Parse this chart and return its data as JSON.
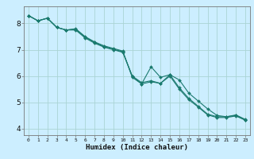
{
  "xlabel": "Humidex (Indice chaleur)",
  "xlim": [
    -0.5,
    23.5
  ],
  "ylim": [
    3.75,
    8.65
  ],
  "background_color": "#cceeff",
  "grid_color": "#aad4d4",
  "line_color": "#1a7a6e",
  "x": [
    0,
    1,
    2,
    3,
    4,
    5,
    6,
    7,
    8,
    9,
    10,
    11,
    12,
    13,
    14,
    15,
    16,
    17,
    18,
    19,
    20,
    21,
    22,
    23
  ],
  "line1": [
    8.3,
    8.1,
    8.2,
    7.85,
    7.75,
    7.8,
    7.5,
    7.3,
    7.15,
    7.05,
    6.95,
    5.95,
    5.7,
    6.35,
    5.95,
    6.05,
    5.85,
    5.35,
    5.05,
    4.75,
    4.5,
    4.45,
    4.5,
    4.32
  ],
  "line2": [
    8.3,
    8.1,
    8.2,
    7.85,
    7.75,
    7.75,
    7.45,
    7.25,
    7.1,
    7.0,
    6.9,
    6.0,
    5.7,
    5.78,
    5.72,
    6.0,
    5.5,
    5.1,
    4.82,
    4.52,
    4.42,
    4.42,
    4.48,
    4.32
  ],
  "line3": [
    8.3,
    8.1,
    8.2,
    7.85,
    7.75,
    7.78,
    7.48,
    7.28,
    7.12,
    7.02,
    6.92,
    6.0,
    5.75,
    5.82,
    5.72,
    6.05,
    5.55,
    5.15,
    4.85,
    4.55,
    4.45,
    4.45,
    4.52,
    4.35
  ],
  "yticks": [
    4,
    5,
    6,
    7,
    8
  ],
  "xticks": [
    0,
    1,
    2,
    3,
    4,
    5,
    6,
    7,
    8,
    9,
    10,
    11,
    12,
    13,
    14,
    15,
    16,
    17,
    18,
    19,
    20,
    21,
    22,
    23
  ]
}
